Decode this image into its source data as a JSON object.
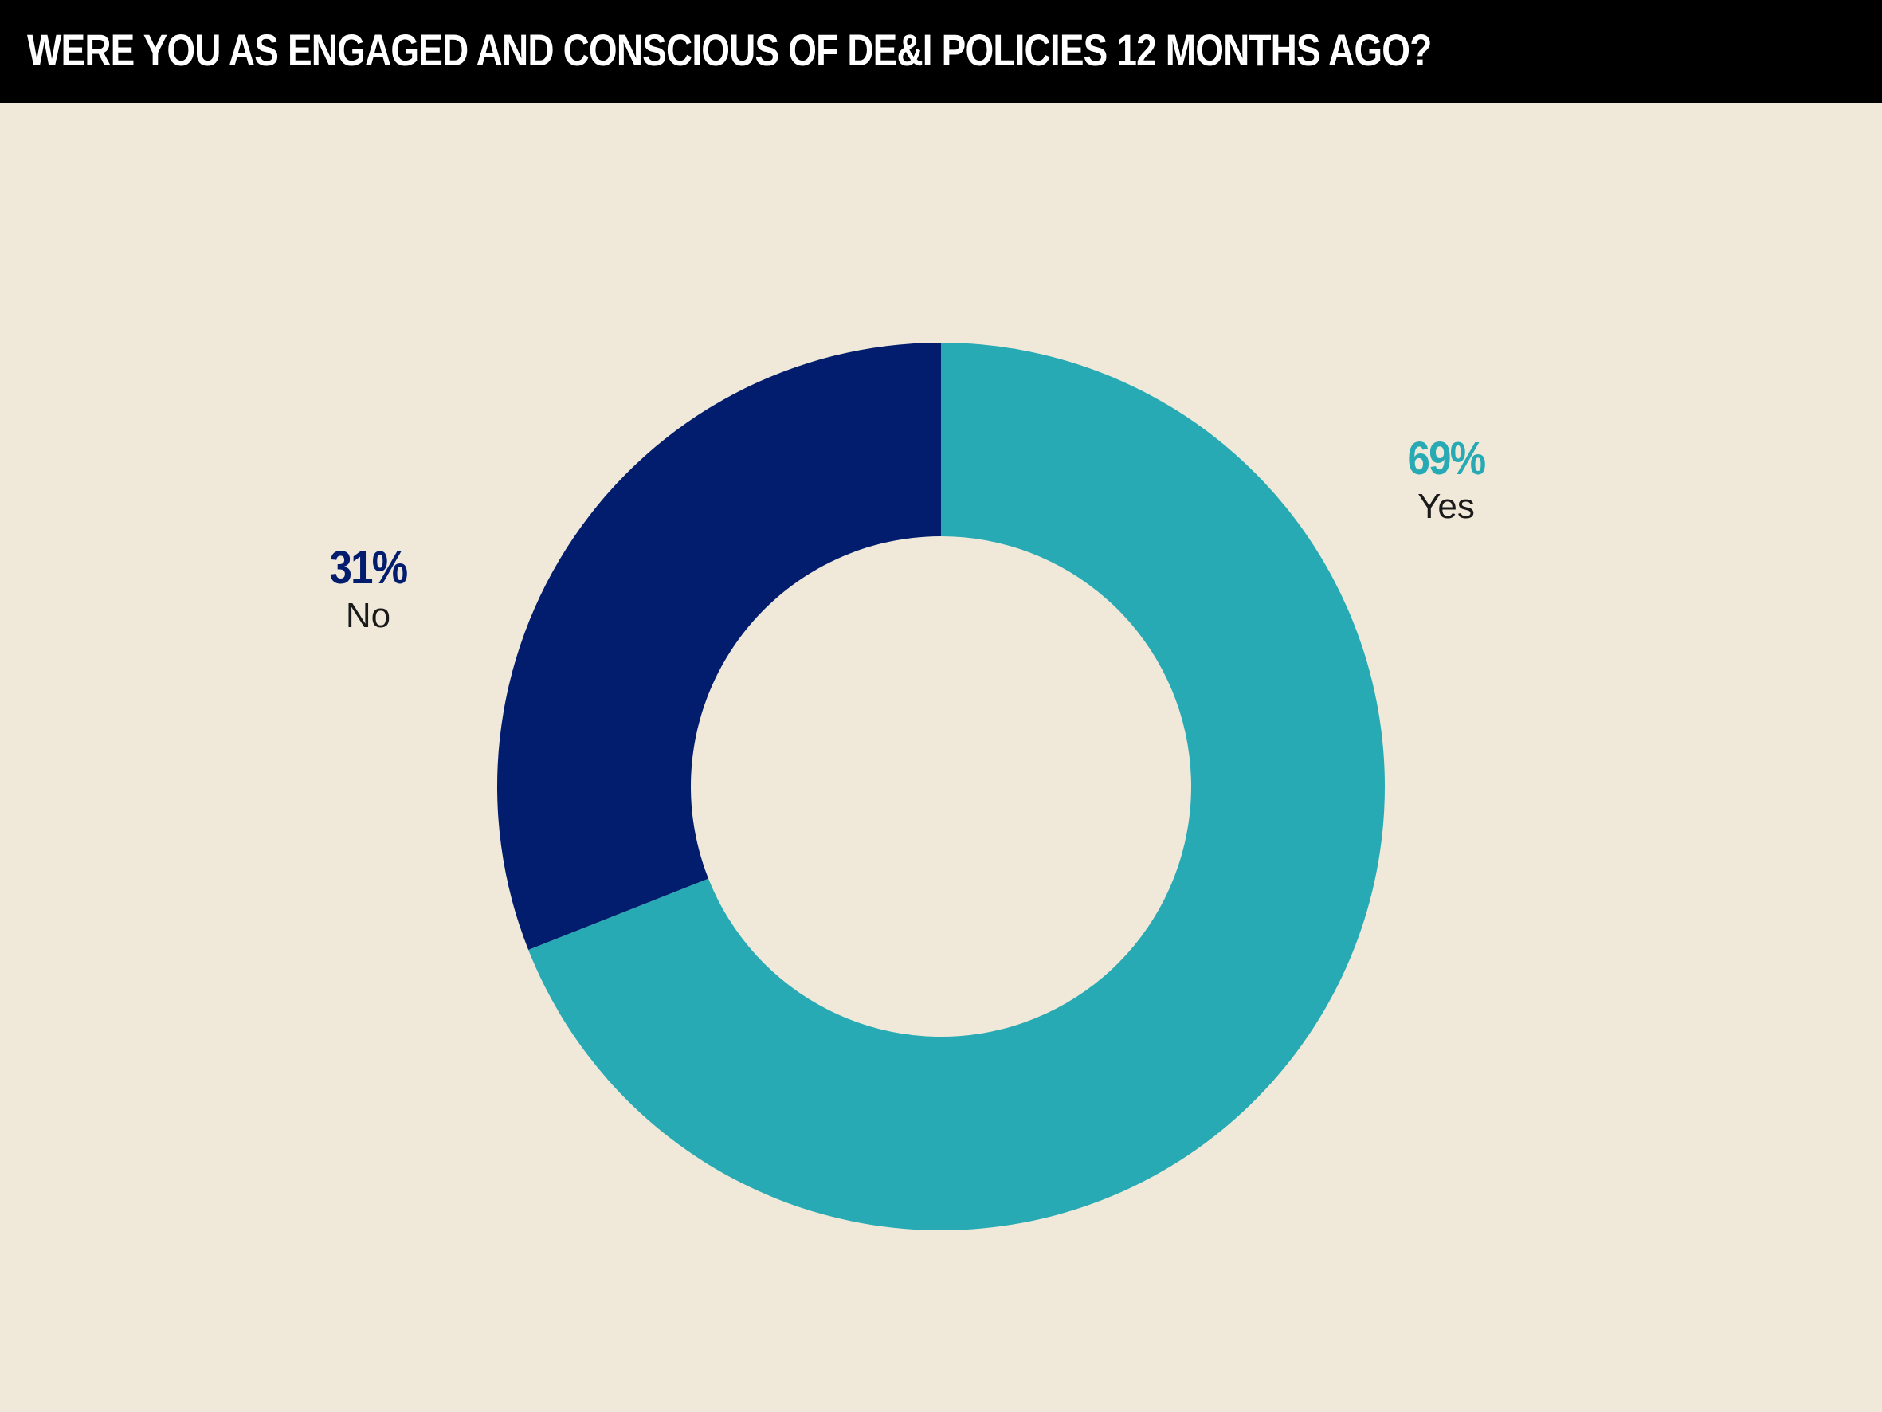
{
  "title": "WERE YOU AS ENGAGED AND CONSCIOUS OF DE&I POLICIES 12 MONTHS AGO?",
  "colors": {
    "background": "#F0E9DA",
    "title_bar": "#000000",
    "title_text": "#FFFFFF",
    "yes": "#27AAB3",
    "no": "#031D6E",
    "label_text": "#1a1a1a"
  },
  "chart_data": {
    "type": "pie",
    "style": "donut",
    "title": "WERE YOU AS ENGAGED AND CONSCIOUS OF DE&I POLICIES 12 MONTHS AGO?",
    "start_angle": "12 o'clock, clockwise",
    "slices": [
      {
        "name": "Yes",
        "value": 69,
        "label": "69%",
        "color": "#27AAB3"
      },
      {
        "name": "No",
        "value": 31,
        "label": "31%",
        "color": "#031D6E"
      }
    ]
  }
}
